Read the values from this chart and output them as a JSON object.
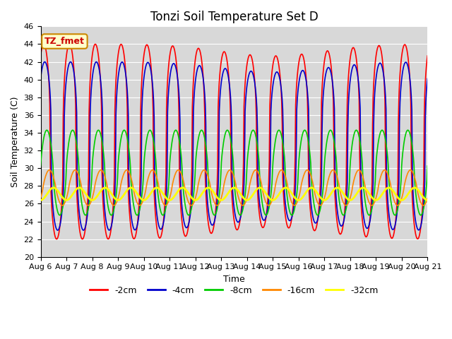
{
  "title": "Tonzi Soil Temperature Set D",
  "xlabel": "Time",
  "ylabel": "Soil Temperature (C)",
  "ylim": [
    20,
    46
  ],
  "yticks": [
    20,
    22,
    24,
    26,
    28,
    30,
    32,
    34,
    36,
    38,
    40,
    42,
    44,
    46
  ],
  "xlim_days": [
    0,
    15
  ],
  "xtick_labels": [
    "Aug 6",
    "Aug 7",
    "Aug 8",
    "Aug 9",
    "Aug 10",
    "Aug 11",
    "Aug 12",
    "Aug 13",
    "Aug 14",
    "Aug 15",
    "Aug 16",
    "Aug 17",
    "Aug 18",
    "Aug 19",
    "Aug 20",
    "Aug 21"
  ],
  "legend_labels": [
    "-2cm",
    "-4cm",
    "-8cm",
    "-16cm",
    "-32cm"
  ],
  "legend_colors": [
    "#ff0000",
    "#0000cc",
    "#00cc00",
    "#ff8800",
    "#ffff00"
  ],
  "line_widths": [
    1.2,
    1.2,
    1.2,
    1.2,
    2.0
  ],
  "annotation_text": "TZ_fmet",
  "annotation_bg": "#ffffcc",
  "annotation_border": "#cc8800",
  "bg_color": "#d8d8d8",
  "grid_color": "#ffffff",
  "title_fontsize": 12,
  "label_fontsize": 9,
  "tick_fontsize": 8
}
